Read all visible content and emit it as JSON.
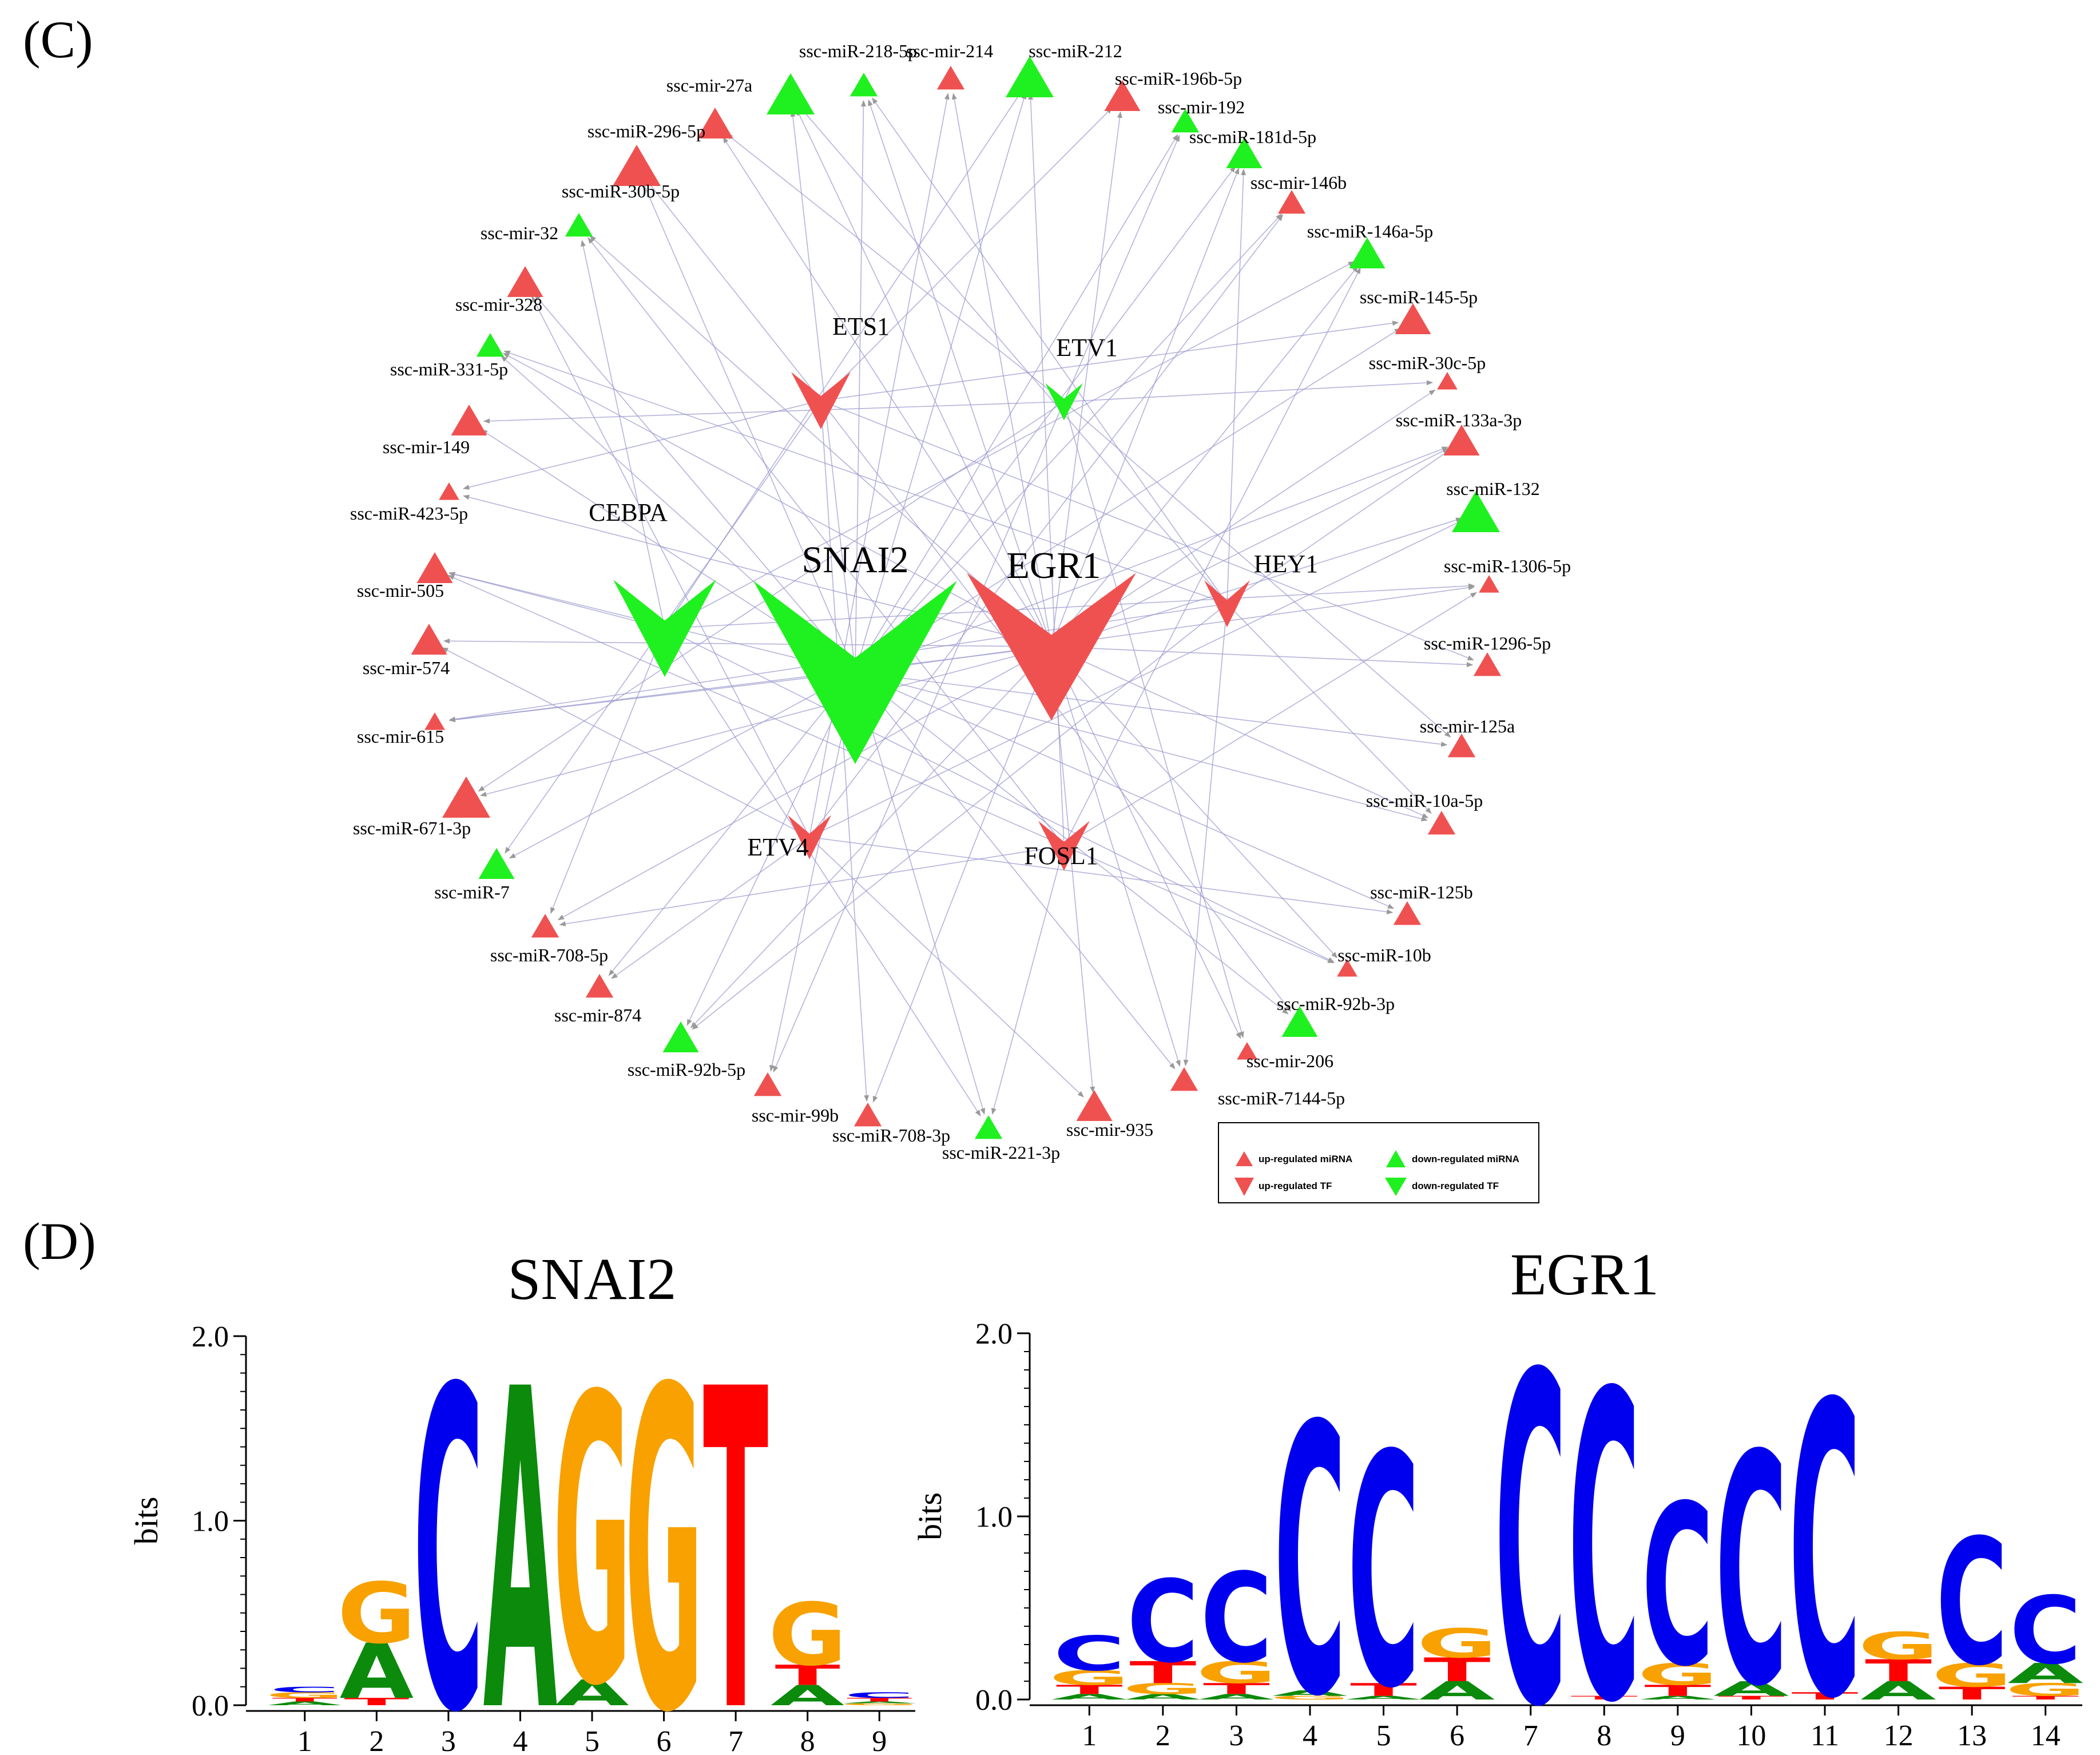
{
  "panels": {
    "c_label": "(C)",
    "d_label": "(D)"
  },
  "colors": {
    "up": "#ef5151",
    "down": "#1ff01f",
    "edge": "#9b99cf",
    "A": "#0b8a0b",
    "C": "#0000ee",
    "G": "#f8a100",
    "T": "#ff0000"
  },
  "network": {
    "mirnas": [
      {
        "label": "ssc-miR-218-5p",
        "reg": "down",
        "size": "s"
      },
      {
        "label": "ssc-mir-214",
        "reg": "up",
        "size": "s"
      },
      {
        "label": "ssc-miR-212",
        "reg": "down",
        "size": "l"
      },
      {
        "label": "ssc-miR-196b-5p",
        "reg": "up",
        "size": "m"
      },
      {
        "label": "ssc-mir-192",
        "reg": "down",
        "size": "s"
      },
      {
        "label": "ssc-miR-181d-5p",
        "reg": "down",
        "size": "m"
      },
      {
        "label": "ssc-mir-146b",
        "reg": "up",
        "size": "s"
      },
      {
        "label": "ssc-miR-146a-5p",
        "reg": "down",
        "size": "m"
      },
      {
        "label": "ssc-miR-145-5p",
        "reg": "up",
        "size": "m"
      },
      {
        "label": "ssc-miR-30c-5p",
        "reg": "up",
        "size": "xs"
      },
      {
        "label": "ssc-miR-133a-3p",
        "reg": "up",
        "size": "m"
      },
      {
        "label": "ssc-miR-132",
        "reg": "down",
        "size": "l"
      },
      {
        "label": "ssc-miR-1306-5p",
        "reg": "up",
        "size": "xs"
      },
      {
        "label": "ssc-miR-1296-5p",
        "reg": "up",
        "size": "s"
      },
      {
        "label": "ssc-mir-125a",
        "reg": "up",
        "size": "s"
      },
      {
        "label": "ssc-miR-10a-5p",
        "reg": "up",
        "size": "s"
      },
      {
        "label": "ssc-miR-125b",
        "reg": "up",
        "size": "s"
      },
      {
        "label": "ssc-miR-10b",
        "reg": "up",
        "size": "xs"
      },
      {
        "label": "ssc-miR-92b-3p",
        "reg": "down",
        "size": "m"
      },
      {
        "label": "ssc-mir-206",
        "reg": "up",
        "size": "xs"
      },
      {
        "label": "ssc-miR-7144-5p",
        "reg": "up",
        "size": "s"
      },
      {
        "label": "ssc-mir-935",
        "reg": "up",
        "size": "m"
      },
      {
        "label": "ssc-miR-221-3p",
        "reg": "down",
        "size": "s"
      },
      {
        "label": "ssc-miR-708-3p",
        "reg": "up",
        "size": "s"
      },
      {
        "label": "ssc-mir-99b",
        "reg": "up",
        "size": "s"
      },
      {
        "label": "ssc-miR-92b-5p",
        "reg": "down",
        "size": "m"
      },
      {
        "label": "ssc-mir-874",
        "reg": "up",
        "size": "s"
      },
      {
        "label": "ssc-miR-708-5p",
        "reg": "up",
        "size": "s"
      },
      {
        "label": "ssc-miR-7",
        "reg": "down",
        "size": "m"
      },
      {
        "label": "ssc-miR-671-3p",
        "reg": "up",
        "size": "l"
      },
      {
        "label": "ssc-mir-615",
        "reg": "up",
        "size": "xs"
      },
      {
        "label": "ssc-mir-574",
        "reg": "up",
        "size": "m"
      },
      {
        "label": "ssc-mir-505",
        "reg": "up",
        "size": "m"
      },
      {
        "label": "ssc-miR-423-5p",
        "reg": "up",
        "size": "xs"
      },
      {
        "label": "ssc-mir-149",
        "reg": "up",
        "size": "m"
      },
      {
        "label": "ssc-miR-331-5p",
        "reg": "down",
        "size": "s"
      },
      {
        "label": "ssc-mir-328",
        "reg": "up",
        "size": "m"
      },
      {
        "label": "ssc-mir-32",
        "reg": "down",
        "size": "s"
      },
      {
        "label": "ssc-miR-30b-5p",
        "reg": "up",
        "size": "l"
      },
      {
        "label": "ssc-miR-296-5p",
        "reg": "up",
        "size": "m"
      },
      {
        "label": "ssc-mir-27a",
        "reg": "down",
        "size": "l"
      }
    ],
    "tfs": [
      {
        "label": "SNAI2",
        "reg": "down",
        "size": "xl"
      },
      {
        "label": "EGR1",
        "reg": "up",
        "size": "xl"
      },
      {
        "label": "CEBPA",
        "reg": "down",
        "size": "l"
      },
      {
        "label": "ETS1",
        "reg": "up",
        "size": "m"
      },
      {
        "label": "ETV1",
        "reg": "down",
        "size": "s"
      },
      {
        "label": "HEY1",
        "reg": "up",
        "size": "s"
      },
      {
        "label": "ETV4",
        "reg": "up",
        "size": "s"
      },
      {
        "label": "FOSL1",
        "reg": "up",
        "size": "s"
      }
    ],
    "legend": {
      "up_mirna": "up-regulated  miRNA",
      "down_mirna": "down-regulated  miRNA",
      "up_tf": "up-regulated  TF",
      "down_tf": "down-regulated  TF"
    }
  },
  "logos": [
    {
      "title": "SNAI2",
      "ylabel": "bits",
      "ylim": [
        0,
        2
      ],
      "yticks": [
        "0.0",
        "1.0",
        "2.0"
      ],
      "positions": [
        {
          "pos": "1",
          "letters": [
            {
              "b": "A",
              "h": 0.02
            },
            {
              "b": "T",
              "h": 0.02
            },
            {
              "b": "G",
              "h": 0.03
            },
            {
              "b": "C",
              "h": 0.03
            }
          ]
        },
        {
          "pos": "2",
          "letters": [
            {
              "b": "T",
              "h": 0.04
            },
            {
              "b": "A",
              "h": 0.3
            },
            {
              "b": "G",
              "h": 0.33
            }
          ]
        },
        {
          "pos": "3",
          "letters": [
            {
              "b": "C",
              "h": 1.74
            }
          ]
        },
        {
          "pos": "4",
          "letters": [
            {
              "b": "A",
              "h": 1.74
            }
          ]
        },
        {
          "pos": "5",
          "letters": [
            {
              "b": "A",
              "h": 0.14
            },
            {
              "b": "G",
              "h": 1.56
            }
          ]
        },
        {
          "pos": "6",
          "letters": [
            {
              "b": "G",
              "h": 1.74
            }
          ]
        },
        {
          "pos": "7",
          "letters": [
            {
              "b": "T",
              "h": 1.74
            }
          ]
        },
        {
          "pos": "8",
          "letters": [
            {
              "b": "A",
              "h": 0.11
            },
            {
              "b": "T",
              "h": 0.11
            },
            {
              "b": "G",
              "h": 0.34
            }
          ]
        },
        {
          "pos": "9",
          "letters": [
            {
              "b": "G",
              "h": 0.01
            },
            {
              "b": "A",
              "h": 0.01
            },
            {
              "b": "T",
              "h": 0.02
            },
            {
              "b": "C",
              "h": 0.03
            }
          ]
        }
      ]
    },
    {
      "title": "EGR1",
      "ylabel": "bits",
      "ylim": [
        0,
        2
      ],
      "yticks": [
        "0.0",
        "1.0",
        "2.0"
      ],
      "positions": [
        {
          "pos": "1",
          "letters": [
            {
              "b": "A",
              "h": 0.03
            },
            {
              "b": "T",
              "h": 0.05
            },
            {
              "b": "G",
              "h": 0.08
            },
            {
              "b": "C",
              "h": 0.19
            }
          ]
        },
        {
          "pos": "2",
          "letters": [
            {
              "b": "A",
              "h": 0.03
            },
            {
              "b": "G",
              "h": 0.06
            },
            {
              "b": "T",
              "h": 0.12
            },
            {
              "b": "C",
              "h": 0.45
            }
          ]
        },
        {
          "pos": "3",
          "letters": [
            {
              "b": "A",
              "h": 0.03
            },
            {
              "b": "T",
              "h": 0.06
            },
            {
              "b": "G",
              "h": 0.12
            },
            {
              "b": "C",
              "h": 0.49
            }
          ]
        },
        {
          "pos": "4",
          "letters": [
            {
              "b": "G",
              "h": 0.02
            },
            {
              "b": "A",
              "h": 0.03
            },
            {
              "b": "C",
              "h": 1.47
            }
          ]
        },
        {
          "pos": "5",
          "letters": [
            {
              "b": "A",
              "h": 0.02
            },
            {
              "b": "T",
              "h": 0.07
            },
            {
              "b": "C",
              "h": 1.27
            }
          ]
        },
        {
          "pos": "6",
          "letters": [
            {
              "b": "A",
              "h": 0.1
            },
            {
              "b": "T",
              "h": 0.13
            },
            {
              "b": "G",
              "h": 0.16
            }
          ]
        },
        {
          "pos": "7",
          "letters": [
            {
              "b": "C",
              "h": 1.8
            }
          ]
        },
        {
          "pos": "8",
          "letters": [
            {
              "b": "T",
              "h": 0.02
            },
            {
              "b": "C",
              "h": 1.68
            }
          ]
        },
        {
          "pos": "9",
          "letters": [
            {
              "b": "A",
              "h": 0.02
            },
            {
              "b": "T",
              "h": 0.06
            },
            {
              "b": "G",
              "h": 0.12
            },
            {
              "b": "C",
              "h": 0.88
            }
          ]
        },
        {
          "pos": "10",
          "letters": [
            {
              "b": "T",
              "h": 0.02
            },
            {
              "b": "A",
              "h": 0.08
            },
            {
              "b": "C",
              "h": 1.26
            }
          ]
        },
        {
          "pos": "11",
          "letters": [
            {
              "b": "T",
              "h": 0.04
            },
            {
              "b": "C",
              "h": 1.6
            }
          ]
        },
        {
          "pos": "12",
          "letters": [
            {
              "b": "A",
              "h": 0.1
            },
            {
              "b": "T",
              "h": 0.12
            },
            {
              "b": "G",
              "h": 0.15
            }
          ]
        },
        {
          "pos": "13",
          "letters": [
            {
              "b": "T",
              "h": 0.07
            },
            {
              "b": "G",
              "h": 0.13
            },
            {
              "b": "C",
              "h": 0.69
            }
          ]
        },
        {
          "pos": "14",
          "letters": [
            {
              "b": "T",
              "h": 0.02
            },
            {
              "b": "G",
              "h": 0.07
            },
            {
              "b": "A",
              "h": 0.11
            },
            {
              "b": "C",
              "h": 0.37
            }
          ]
        }
      ]
    }
  ]
}
